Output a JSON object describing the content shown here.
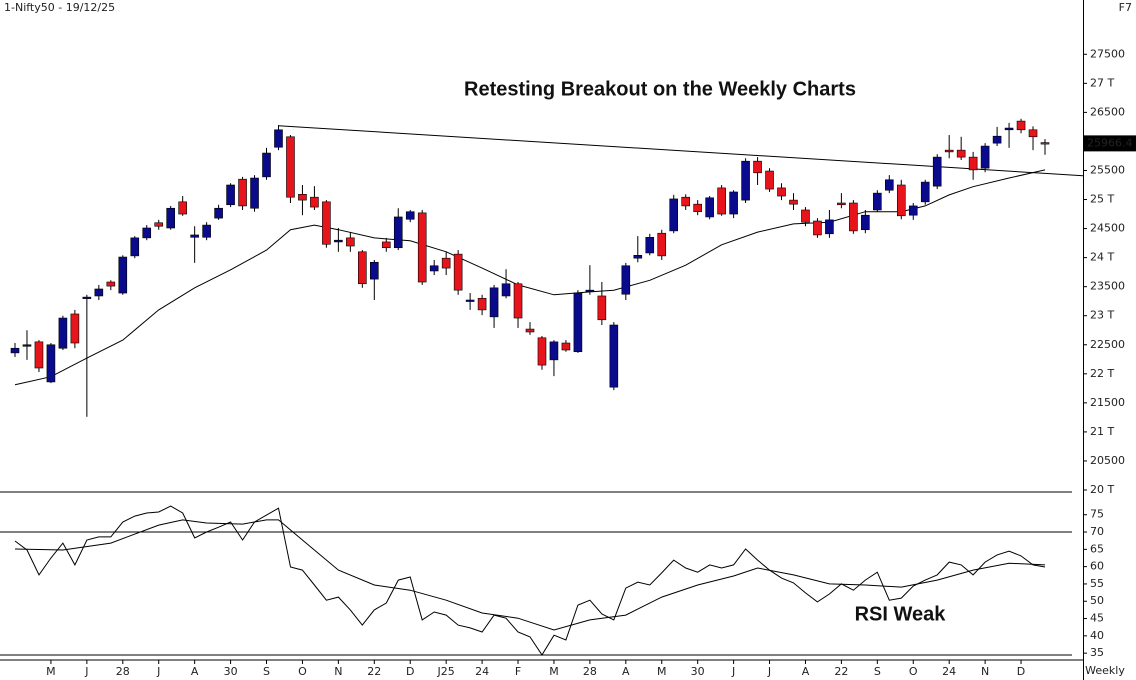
{
  "chart_data": [
    {
      "type": "candlestick",
      "symbol": "1-Nifty50 - 19/12/25",
      "shortcut": "F7",
      "title": "Retesting Breakout on the Weekly Charts",
      "interval": "Weekly",
      "categories": [
        null,
        null,
        null,
        "M",
        null,
        null,
        "J",
        null,
        null,
        "28",
        null,
        null,
        "J",
        null,
        null,
        "A",
        null,
        null,
        "30",
        null,
        null,
        "S",
        null,
        null,
        "O",
        null,
        null,
        "N",
        null,
        null,
        "22",
        null,
        null,
        "D",
        null,
        null,
        "J25",
        null,
        null,
        "24",
        null,
        null,
        "F",
        null,
        null,
        "M",
        null,
        null,
        "28",
        null,
        null,
        "A",
        null,
        null,
        "M",
        null,
        null,
        "30",
        null,
        null,
        "J",
        null,
        null,
        "J",
        null,
        null,
        "A",
        null,
        null,
        "22",
        null,
        null,
        "S",
        null,
        null,
        "O",
        null,
        null,
        "24",
        null,
        null,
        "N",
        null,
        null,
        "D",
        null,
        null
      ],
      "open": [
        22360,
        22490,
        22550,
        21860,
        22440,
        23030,
        23310,
        23340,
        23580,
        23390,
        24030,
        24340,
        24600,
        24510,
        24960,
        24350,
        24350,
        24680,
        24910,
        25350,
        24850,
        25390,
        25900,
        26080,
        25090,
        25040,
        24960,
        24270,
        24340,
        24100,
        23630,
        24270,
        24170,
        24660,
        24770,
        23770,
        23990,
        24060,
        23260,
        23300,
        22980,
        23340,
        23550,
        22770,
        22620,
        22240,
        22530,
        22380,
        23430,
        23340,
        21770,
        23370,
        23990,
        24080,
        24420,
        24460,
        25040,
        24920,
        24700,
        25200,
        24750,
        24990,
        25660,
        25490,
        25200,
        24990,
        24820,
        24630,
        24410,
        24940,
        24940,
        24480,
        24820,
        25160,
        25250,
        24730,
        24960,
        25230,
        25850,
        25850,
        25730,
        25540,
        25970,
        26200,
        26350,
        26200,
        25980
      ],
      "high": [
        22530,
        22750,
        22580,
        22530,
        23000,
        23100,
        23360,
        23530,
        23610,
        24040,
        24370,
        24560,
        24650,
        24890,
        25060,
        24540,
        24610,
        24910,
        25280,
        25390,
        25420,
        25890,
        26280,
        26110,
        25250,
        25230,
        24990,
        24510,
        24440,
        24130,
        23960,
        24340,
        24850,
        24820,
        24820,
        23960,
        24100,
        24130,
        23390,
        23360,
        23530,
        23800,
        23580,
        22890,
        22650,
        22580,
        22580,
        23440,
        23870,
        23580,
        22890,
        23910,
        24370,
        24410,
        24480,
        25080,
        25090,
        24990,
        25060,
        25250,
        25160,
        25710,
        25730,
        25540,
        25280,
        25110,
        24870,
        24680,
        24820,
        25110,
        24990,
        24820,
        25160,
        25420,
        25340,
        24940,
        25340,
        25780,
        26110,
        26080,
        25820,
        25970,
        26250,
        26320,
        26390,
        26260,
        26040
      ],
      "low": [
        22290,
        22240,
        22030,
        21840,
        22410,
        22440,
        21260,
        23270,
        23440,
        23360,
        23990,
        24300,
        24480,
        24480,
        24720,
        23910,
        24300,
        24650,
        24870,
        24820,
        24790,
        25340,
        25850,
        24940,
        24730,
        24820,
        24170,
        24100,
        24100,
        23480,
        23270,
        24100,
        24130,
        24610,
        23530,
        23700,
        23700,
        23360,
        23100,
        23010,
        22790,
        23300,
        22790,
        22670,
        22070,
        21960,
        22380,
        22360,
        23360,
        22840,
        21720,
        23270,
        23920,
        24040,
        23960,
        24420,
        24820,
        24730,
        24660,
        24720,
        24680,
        24940,
        25250,
        25130,
        24990,
        24820,
        24540,
        24340,
        24340,
        24850,
        24410,
        24420,
        24790,
        25110,
        24660,
        24650,
        24910,
        25180,
        25710,
        25680,
        25340,
        25470,
        25920,
        25890,
        26140,
        25850,
        25770
      ],
      "close": [
        22440,
        22500,
        22100,
        22500,
        22960,
        22530,
        23320,
        23460,
        23510,
        24010,
        24340,
        24510,
        24540,
        24850,
        24750,
        24390,
        24560,
        24850,
        25250,
        24890,
        25370,
        25800,
        26200,
        25040,
        24990,
        24870,
        24230,
        24300,
        24200,
        23550,
        23920,
        24170,
        24700,
        24790,
        23580,
        23860,
        23820,
        23440,
        23270,
        23100,
        23480,
        23550,
        22960,
        22720,
        22150,
        22550,
        22410,
        23390,
        23440,
        22930,
        22840,
        23860,
        24040,
        24350,
        24030,
        25010,
        24890,
        24790,
        25030,
        24750,
        25130,
        25660,
        25460,
        25180,
        25060,
        24920,
        24610,
        24390,
        24650,
        24910,
        24460,
        24730,
        25110,
        25340,
        24720,
        24890,
        25300,
        25730,
        25820,
        25730,
        25510,
        25920,
        26090,
        26230,
        26200,
        26080,
        25966.4
      ],
      "up_color": "#0a0a8c",
      "down_color": "#e8141b",
      "moving_average": {
        "color": "#000000",
        "x": [
          0,
          3,
          6,
          9,
          12,
          15,
          18,
          21,
          23,
          25,
          27,
          30,
          33,
          36,
          39,
          42,
          45,
          48,
          50,
          53,
          56,
          59,
          62,
          65,
          68,
          71,
          74,
          76,
          78,
          80,
          83,
          86
        ],
        "values": [
          21810,
          21950,
          22270,
          22580,
          23100,
          23480,
          23790,
          24130,
          24480,
          24560,
          24480,
          24340,
          24290,
          24100,
          23820,
          23530,
          23360,
          23410,
          23440,
          23610,
          23870,
          24220,
          24440,
          24580,
          24610,
          24790,
          24790,
          24890,
          25080,
          25220,
          25370,
          25510
        ]
      },
      "trendline": {
        "color": "#000000",
        "x": [
          22,
          86
        ],
        "values": [
          26270,
          25450
        ]
      },
      "ylim": [
        20000,
        28400
      ],
      "yticks": [
        27500,
        {
          "value": 27000,
          "label": "27 T"
        },
        26500,
        25500,
        {
          "value": 25000,
          "label": "25 T"
        },
        24500,
        {
          "value": 24000,
          "label": "24 T"
        },
        23500,
        {
          "value": 23000,
          "label": "23 T"
        },
        22500,
        {
          "value": 22000,
          "label": "22 T"
        },
        21500,
        {
          "value": 21000,
          "label": "21 T"
        },
        20500,
        {
          "value": 20000,
          "label": "20 T"
        }
      ]
    },
    {
      "type": "line",
      "annotation": "RSI Weak",
      "series": [
        {
          "color": "#000000",
          "values": [
            67.4,
            64.8,
            57.6,
            62.5,
            66.8,
            60.5,
            67.7,
            68.6,
            68.6,
            72.9,
            74.6,
            75.5,
            75.8,
            77.5,
            75.5,
            68.3,
            70,
            71.4,
            72.9,
            67.7,
            72.9,
            74.9,
            76.9,
            59.9,
            59.0,
            54.7,
            50.3,
            51.2,
            47.5,
            43.1,
            47.5,
            49.5,
            56.1,
            57.0,
            44.6,
            46.9,
            46.0,
            43.1,
            42.3,
            41.1,
            46.0,
            45.1,
            41.1,
            39.7,
            34.5,
            40.2,
            38.8,
            48.9,
            50.3,
            46.3,
            44.6,
            53.8,
            55.5,
            54.7,
            58.2,
            61.9,
            59.6,
            58.4,
            60.5,
            59.6,
            60.5,
            65.1,
            61.9,
            59.0,
            56.7,
            55.3,
            52.4,
            49.8,
            52.1,
            55.0,
            53.2,
            56.1,
            58.4,
            50.3,
            50.9,
            54.4,
            56.1,
            57.6,
            61.3,
            60.5,
            57.6,
            61.3,
            63.4,
            64.5,
            63.1,
            60.5,
            59.9
          ]
        },
        {
          "color": "#000000",
          "x": [
            0,
            4,
            8,
            12,
            14,
            16,
            19,
            21,
            22,
            24,
            27,
            30,
            33,
            36,
            39,
            42,
            45,
            48,
            51,
            54,
            57,
            60,
            62,
            65,
            68,
            71,
            74,
            77,
            80,
            83,
            86
          ],
          "values": [
            65.1,
            64.8,
            66.8,
            72.0,
            73.5,
            72.6,
            72.3,
            73.5,
            73.5,
            67.7,
            59.0,
            54.7,
            53.2,
            50.3,
            46.6,
            45.1,
            41.7,
            44.6,
            46.0,
            51.2,
            54.7,
            57.3,
            59.6,
            57.6,
            55.0,
            54.7,
            54.1,
            56.1,
            59.0,
            61.0,
            60.5
          ]
        }
      ],
      "levels": [
        70
      ],
      "ylim": [
        33.6,
        80.7
      ],
      "yticks": [
        35,
        40,
        45,
        50,
        55,
        60,
        65,
        70,
        75
      ]
    }
  ]
}
